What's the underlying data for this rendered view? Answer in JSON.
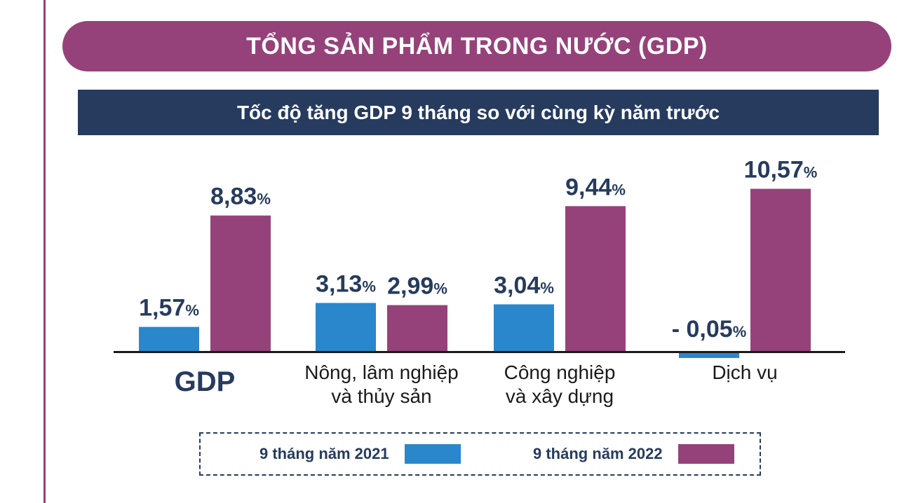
{
  "title": "TỔNG SẢN PHẨM TRONG NƯỚC (GDP)",
  "subtitle": "Tốc độ tăng GDP 9 tháng so với cùng kỳ năm trước",
  "colors": {
    "accent_purple": "#96427a",
    "header_navy": "#263b5e",
    "series_2021": "#2a87cc",
    "series_2022": "#96427a",
    "label_text": "#263b5e"
  },
  "legend": {
    "item_2021": "9 tháng năm 2021",
    "item_2022": "9 tháng năm 2022"
  },
  "chart_data": {
    "type": "bar",
    "title": "Tốc độ tăng GDP 9 tháng so với cùng kỳ năm trước",
    "categories": [
      [
        "GDP"
      ],
      [
        "Nông, lâm nghiệp",
        "và thủy sản"
      ],
      [
        "Công nghiệp",
        "và xây dựng"
      ],
      [
        "Dịch vụ"
      ]
    ],
    "series": [
      {
        "name": "9 tháng năm 2021",
        "color": "#2a87cc",
        "values": [
          1.57,
          3.13,
          3.04,
          -0.05
        ],
        "labels": [
          "1,57",
          "3,13",
          "3,04",
          "- 0,05"
        ]
      },
      {
        "name": "9 tháng năm 2022",
        "color": "#96427a",
        "values": [
          8.83,
          2.99,
          9.44,
          10.57
        ],
        "labels": [
          "8,83",
          "2,99",
          "9,44",
          "10,57"
        ]
      }
    ],
    "unit": "%",
    "legend_position": "bottom",
    "grid": false
  }
}
